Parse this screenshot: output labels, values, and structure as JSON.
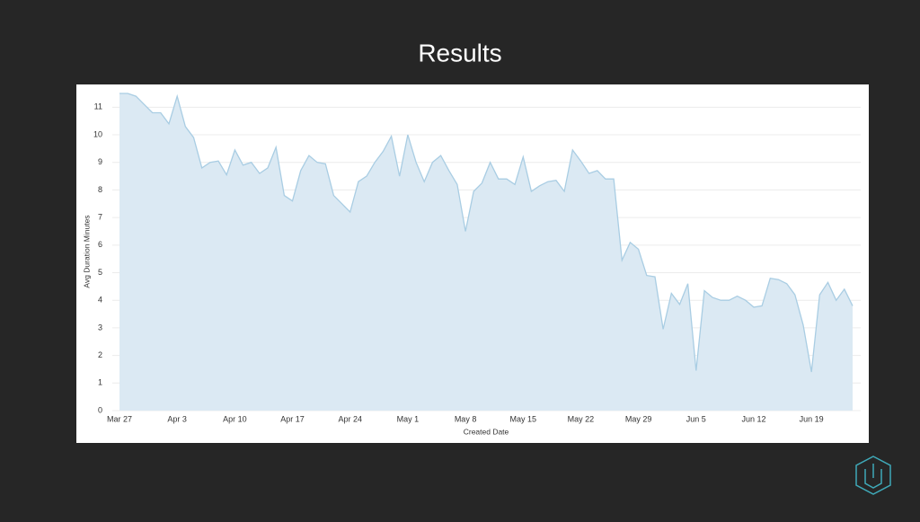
{
  "chart_data": {
    "type": "area",
    "title": "Results",
    "x_label": "Created Date",
    "y_label": "Avg Duration Minutes",
    "categories": [
      "Mar 27",
      null,
      null,
      null,
      null,
      null,
      null,
      "Apr 3",
      null,
      null,
      null,
      null,
      null,
      null,
      "Apr 10",
      null,
      null,
      null,
      null,
      null,
      null,
      "Apr 17",
      null,
      null,
      null,
      null,
      null,
      null,
      "Apr 24",
      null,
      null,
      null,
      null,
      null,
      null,
      "May 1",
      null,
      null,
      null,
      null,
      null,
      null,
      "May 8",
      null,
      null,
      null,
      null,
      null,
      null,
      "May 15",
      null,
      null,
      null,
      null,
      null,
      null,
      "May 22",
      null,
      null,
      null,
      null,
      null,
      null,
      "May 29",
      null,
      null,
      null,
      null,
      null,
      null,
      "Jun 5",
      null,
      null,
      null,
      null,
      null,
      null,
      "Jun 12",
      null,
      null,
      null,
      null,
      null,
      null,
      "Jun 19",
      null,
      null,
      null,
      null,
      null
    ],
    "series": [
      {
        "name": "Avg Duration Minutes",
        "color": "#a9cde3",
        "fill": "#dbe9f3",
        "values": [
          11.5,
          11.5,
          11.4,
          11.1,
          10.8,
          10.8,
          10.4,
          11.4,
          10.3,
          9.9,
          8.8,
          9.0,
          9.05,
          8.55,
          9.45,
          8.9,
          9.0,
          8.6,
          8.8,
          9.55,
          7.8,
          7.6,
          8.7,
          9.25,
          9.0,
          8.95,
          7.8,
          7.5,
          7.2,
          8.3,
          8.5,
          9.0,
          9.4,
          9.95,
          8.5,
          10.0,
          9.0,
          8.3,
          9.0,
          9.25,
          8.7,
          8.2,
          6.5,
          7.95,
          8.25,
          9.0,
          8.4,
          8.4,
          8.2,
          9.2,
          7.95,
          8.15,
          8.3,
          8.35,
          7.95,
          9.45,
          9.05,
          8.6,
          8.7,
          8.4,
          8.4,
          5.45,
          6.1,
          5.85,
          4.9,
          4.85,
          2.95,
          4.25,
          3.85,
          4.6,
          1.45,
          4.35,
          4.1,
          4.0,
          4.0,
          4.15,
          4.0,
          3.75,
          3.8,
          4.8,
          4.75,
          4.6,
          4.2,
          3.1,
          1.4,
          4.2,
          4.65,
          4.0,
          4.4,
          3.8
        ]
      }
    ],
    "ylim": [
      0,
      11.5
    ],
    "yticks": [
      0,
      1,
      2,
      3,
      4,
      5,
      6,
      7,
      8,
      9,
      10,
      11
    ],
    "grid": true
  }
}
